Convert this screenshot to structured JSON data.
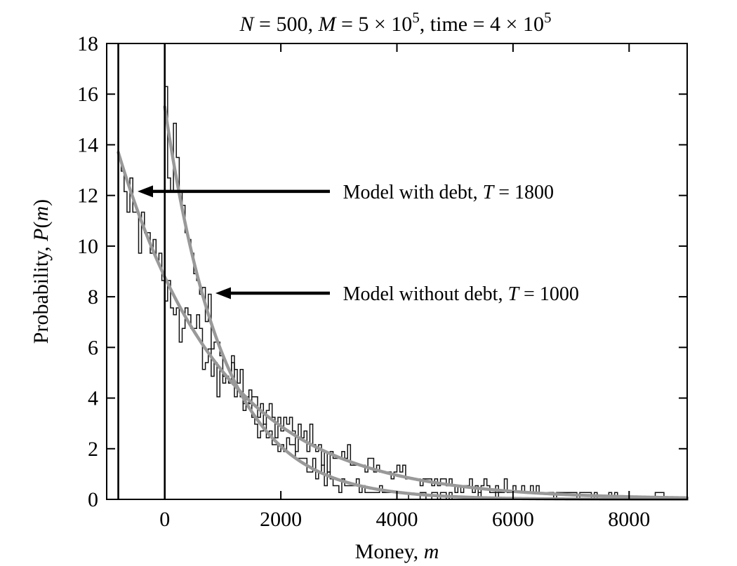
{
  "figure": {
    "background": "#ffffff",
    "ink_color": "#000000",
    "fit_color": "#999999",
    "hist_color": "#111111"
  },
  "chart_data": {
    "type": "line",
    "title_segments": [
      {
        "text": "N",
        "italic": true
      },
      {
        "text": " = 500, "
      },
      {
        "text": "M",
        "italic": true
      },
      {
        "text": " = 5 × 10"
      },
      {
        "text": "5",
        "sup": true
      },
      {
        "text": ", time = 4 × 10"
      },
      {
        "text": "5",
        "sup": true
      }
    ],
    "xlabel_segments": [
      {
        "text": "Money, "
      },
      {
        "text": "m",
        "italic": true
      }
    ],
    "ylabel_segments": [
      {
        "text": "Probability, "
      },
      {
        "text": "P",
        "italic": true
      },
      {
        "text": "("
      },
      {
        "text": "m",
        "italic": true
      },
      {
        "text": ")"
      }
    ],
    "xlim": [
      -1000,
      9000
    ],
    "ylim": [
      0,
      18
    ],
    "x_ticks": [
      0,
      2000,
      4000,
      6000,
      8000
    ],
    "x_tick_labels": [
      "0",
      "2000",
      "4000",
      "6000",
      "8000"
    ],
    "y_ticks": [
      0,
      2,
      4,
      6,
      8,
      10,
      12,
      14,
      16,
      18
    ],
    "y_tick_labels": [
      "0",
      "2",
      "4",
      "6",
      "8",
      "10",
      "12",
      "14",
      "16",
      "18"
    ],
    "grid": false,
    "boundary_wall_x": [
      -800,
      0
    ],
    "series": [
      {
        "name": "Model with debt",
        "temperature_T": 1800,
        "P_at_start": 13.7,
        "m_start": -800,
        "m_end": 9000,
        "fit_curve": true,
        "histogram": {
          "bin_width": 50,
          "quantum": 0.27,
          "noise_factor": 0.45,
          "seed": 1833,
          "first_bin_value": 13.45
        }
      },
      {
        "name": "Model without debt",
        "temperature_T": 1000,
        "P_at_start": 15.5,
        "m_start": 0,
        "m_end": 9000,
        "fit_curve": true,
        "histogram": {
          "bin_width": 50,
          "quantum": 0.27,
          "noise_factor": 0.45,
          "seed": 1007,
          "first_bin_value": 16.3
        }
      }
    ],
    "annotations": [
      {
        "segments": [
          {
            "text": "Model with debt, "
          },
          {
            "text": "T",
            "italic": true
          },
          {
            "text": " = 1800"
          }
        ],
        "arrow_y": 12.16,
        "arrow_tail_m": 2845,
        "arrow_tip_m": -468,
        "text_m": 3070
      },
      {
        "segments": [
          {
            "text": "Model without debt, "
          },
          {
            "text": "T",
            "italic": true
          },
          {
            "text": " = 1000"
          }
        ],
        "arrow_y": 8.14,
        "arrow_tail_m": 2845,
        "arrow_tip_m": 874,
        "text_m": 3070
      }
    ]
  }
}
